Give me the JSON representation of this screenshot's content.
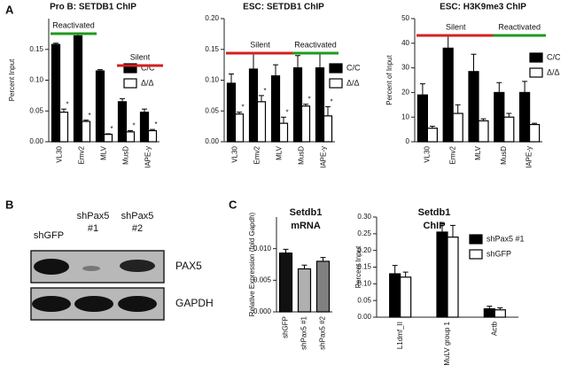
{
  "panel_labels": [
    "A",
    "B",
    "C"
  ],
  "western_blot": {
    "lanes": [
      [
        "shGFP"
      ],
      [
        "shPax5",
        "#1"
      ],
      [
        "shPax5",
        "#2"
      ]
    ],
    "bands": [
      "PAX5",
      "GAPDH"
    ]
  },
  "chart_data": [
    {
      "type": "bar",
      "title": "Pro B: SETDB1 ChIP",
      "y_label": "Percent Input",
      "categories": [
        "VL30",
        "Emv2",
        "MLV",
        "MusD",
        "IAPE-y"
      ],
      "series": [
        {
          "name": "C/C",
          "color": "#000000",
          "values": [
            0.158,
            0.172,
            0.115,
            0.065,
            0.048
          ],
          "errors": [
            0.002,
            0.004,
            0.002,
            0.005,
            0.005
          ]
        },
        {
          "name": "Δ/Δ",
          "color": "#ffffff",
          "values": [
            0.048,
            0.033,
            0.012,
            0.016,
            0.018
          ],
          "errors": [
            0.005,
            0.002,
            0.001,
            0.002,
            0.002
          ],
          "markers": [
            "*",
            "*",
            "*",
            "*",
            "*"
          ]
        }
      ],
      "ylim": [
        0,
        0.2
      ],
      "yticks": [
        {
          "value": 0,
          "label": "0.00"
        },
        {
          "value": 0.05,
          "label": "0.05"
        },
        {
          "value": 0.1,
          "label": "0.10"
        },
        {
          "value": 0.15,
          "label": "0.15"
        }
      ],
      "annotations": [
        {
          "text": "Reactivated",
          "color": "#1e9a1e"
        },
        {
          "text": "Silent",
          "color": "#d42020"
        }
      ]
    },
    {
      "type": "bar",
      "title": "ESC: SETDB1 ChIP",
      "categories": [
        "VL30",
        "Emv2",
        "MLV",
        "MusD",
        "IAPE-y"
      ],
      "series": [
        {
          "name": "C/C",
          "color": "#000000",
          "values": [
            0.095,
            0.118,
            0.107,
            0.12,
            0.12
          ],
          "errors": [
            0.015,
            0.025,
            0.018,
            0.02,
            0.025
          ]
        },
        {
          "name": "Δ/Δ",
          "color": "#ffffff",
          "values": [
            0.045,
            0.065,
            0.03,
            0.058,
            0.042
          ],
          "errors": [
            0.003,
            0.01,
            0.01,
            0.003,
            0.015
          ],
          "markers": [
            "*",
            "*",
            "*",
            "*",
            "*"
          ]
        }
      ],
      "ylim": [
        0,
        0.2
      ],
      "yticks": [
        {
          "value": 0,
          "label": "0.00"
        },
        {
          "value": 0.05,
          "label": "0.05"
        },
        {
          "value": 0.1,
          "label": "0.10"
        },
        {
          "value": 0.15,
          "label": "0.15"
        },
        {
          "value": 0.2,
          "label": "0.20"
        }
      ],
      "annotations": [
        {
          "text": "Silent",
          "color": "#d42020"
        },
        {
          "text": "Reactivated",
          "color": "#1e9a1e"
        }
      ]
    },
    {
      "type": "bar",
      "title": "ESC: H3K9me3 ChIP",
      "y_label": "Percent of Input",
      "categories": [
        "VL30",
        "Emv2",
        "MLV",
        "MusD",
        "IAPE-y"
      ],
      "series": [
        {
          "name": "C/C",
          "color": "#000000",
          "values": [
            19,
            38,
            28.5,
            20,
            20
          ],
          "errors": [
            4.5,
            5,
            7,
            4,
            4.5
          ]
        },
        {
          "name": "Δ/Δ",
          "color": "#ffffff",
          "values": [
            5.5,
            11.5,
            8.5,
            10,
            7
          ],
          "errors": [
            0.8,
            3.5,
            0.8,
            1.5,
            0.5
          ]
        }
      ],
      "ylim": [
        0,
        50
      ],
      "yticks": [
        0,
        10,
        20,
        30,
        40,
        50
      ],
      "annotations": [
        {
          "text": "Silent",
          "color": "#d42020"
        },
        {
          "text": "Reactivated",
          "color": "#1e9a1e"
        }
      ]
    },
    {
      "type": "bar",
      "title_lines": [
        "Setdb1",
        "mRNA"
      ],
      "y_label": "Relative Expression (fold Gapdh)",
      "categories": [
        "shGFP",
        "shPax5 #1",
        "shPax5 #2"
      ],
      "values": [
        0.0093,
        0.0068,
        0.008
      ],
      "errors": [
        0.0006,
        0.0006,
        0.0006
      ],
      "colors": [
        "#111111",
        "#b0b0b0",
        "#808080"
      ],
      "ylim": [
        0,
        0.015
      ],
      "yticks": [
        {
          "value": 0,
          "label": "0.000"
        },
        {
          "value": 0.005,
          "label": "0.005"
        },
        {
          "value": 0.01,
          "label": "0.010"
        }
      ]
    },
    {
      "type": "bar",
      "title_lines": [
        "Setdb1",
        "ChIP"
      ],
      "y_label": "Percent Input",
      "categories": [
        "L1dmf_II",
        "MuLV group 1",
        "Actb"
      ],
      "series": [
        {
          "name": "shPax5 #1",
          "color": "#000000",
          "values": [
            0.13,
            0.255,
            0.025
          ],
          "errors": [
            0.025,
            0.025,
            0.008
          ]
        },
        {
          "name": "shGFP",
          "color": "#ffffff",
          "values": [
            0.12,
            0.24,
            0.022
          ],
          "errors": [
            0.015,
            0.035,
            0.006
          ]
        }
      ],
      "ylim": [
        0,
        0.3
      ],
      "yticks": [
        {
          "value": 0,
          "label": "0.00"
        },
        {
          "value": 0.05,
          "label": "0.05"
        },
        {
          "value": 0.1,
          "label": "0.10"
        },
        {
          "value": 0.15,
          "label": "0.15"
        },
        {
          "value": 0.2,
          "label": "0.20"
        },
        {
          "value": 0.25,
          "label": "0.25"
        },
        {
          "value": 0.3,
          "label": "0.30"
        }
      ]
    }
  ]
}
